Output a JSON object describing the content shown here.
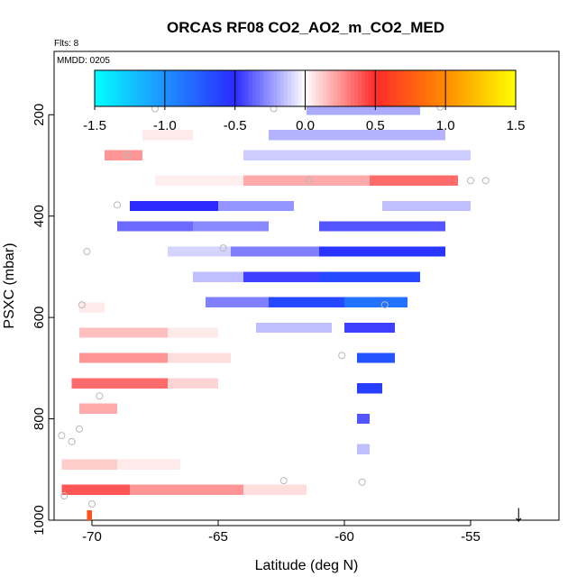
{
  "chart_data": {
    "type": "heatmap",
    "title": "ORCAS RF08 CO2_AO2_m_CO2_MED",
    "flights_note": "Flts: 8",
    "date_note": "MMDD: 0205",
    "xlabel": "Latitude (deg N)",
    "ylabel": "PSXC (mbar)",
    "xlim": [
      -71.5,
      -51.5
    ],
    "ylim": [
      1000,
      75
    ],
    "x_ticks": [
      -70,
      -65,
      -60,
      -55
    ],
    "x_tick_labels": [
      "-70",
      "-65",
      "-60",
      "-55"
    ],
    "y_ticks": [
      200,
      400,
      600,
      800,
      1000
    ],
    "y_tick_labels": [
      "200",
      "400",
      "600",
      "800",
      "1000"
    ],
    "colorbar": {
      "range": [
        -1.5,
        1.5
      ],
      "ticks": [
        -1.5,
        -1.0,
        -0.5,
        0.0,
        0.5,
        1.0,
        1.5
      ],
      "tick_labels": [
        "-1.5",
        "-1.0",
        "-0.5",
        "0.0",
        "0.5",
        "1.0",
        "1.5"
      ],
      "stops": [
        {
          "v": -1.5,
          "color": "#00FFFF"
        },
        {
          "v": -1.0,
          "color": "#1E90FF"
        },
        {
          "v": -0.5,
          "color": "#2A2AFF"
        },
        {
          "v": 0.0,
          "color": "#FFFFFF"
        },
        {
          "v": 0.5,
          "color": "#FF2A2A"
        },
        {
          "v": 1.0,
          "color": "#FF8C00"
        },
        {
          "v": 1.5,
          "color": "#FFFF00"
        }
      ]
    },
    "cell_size": {
      "dlat": 0.5,
      "dp": 20
    },
    "cells": [
      {
        "lat0": -68,
        "lat1": -66,
        "p": 240,
        "v": 0.05
      },
      {
        "lat0": -69.5,
        "lat1": -68,
        "p": 280,
        "v": 0.25
      },
      {
        "lat0": -61.5,
        "lat1": -57,
        "p": 190,
        "v": -0.2
      },
      {
        "lat0": -63,
        "lat1": -56,
        "p": 240,
        "v": -0.18
      },
      {
        "lat0": -64,
        "lat1": -55,
        "p": 280,
        "v": -0.12
      },
      {
        "lat0": -67.5,
        "lat1": -64,
        "p": 330,
        "v": 0.04
      },
      {
        "lat0": -64,
        "lat1": -59,
        "p": 330,
        "v": 0.2
      },
      {
        "lat0": -59,
        "lat1": -55.5,
        "p": 330,
        "v": 0.35
      },
      {
        "lat0": -68.5,
        "lat1": -65,
        "p": 380,
        "v": -0.5
      },
      {
        "lat0": -65,
        "lat1": -62,
        "p": 380,
        "v": -0.25
      },
      {
        "lat0": -58.5,
        "lat1": -55,
        "p": 380,
        "v": -0.15
      },
      {
        "lat0": -69,
        "lat1": -66,
        "p": 420,
        "v": -0.35
      },
      {
        "lat0": -66,
        "lat1": -63,
        "p": 420,
        "v": -0.28
      },
      {
        "lat0": -61,
        "lat1": -56,
        "p": 420,
        "v": -0.4
      },
      {
        "lat0": -67,
        "lat1": -64.5,
        "p": 470,
        "v": -0.1
      },
      {
        "lat0": -64.5,
        "lat1": -61,
        "p": 470,
        "v": -0.3
      },
      {
        "lat0": -61,
        "lat1": -56,
        "p": 470,
        "v": -0.55
      },
      {
        "lat0": -66,
        "lat1": -64,
        "p": 520,
        "v": -0.15
      },
      {
        "lat0": -64,
        "lat1": -61,
        "p": 520,
        "v": -0.45
      },
      {
        "lat0": -61,
        "lat1": -57,
        "p": 520,
        "v": -0.65
      },
      {
        "lat0": -65.5,
        "lat1": -63,
        "p": 570,
        "v": -0.3
      },
      {
        "lat0": -63,
        "lat1": -60,
        "p": 570,
        "v": -0.65
      },
      {
        "lat0": -60,
        "lat1": -57.5,
        "p": 570,
        "v": -0.85
      },
      {
        "lat0": -63.5,
        "lat1": -60.5,
        "p": 620,
        "v": -0.15
      },
      {
        "lat0": -60,
        "lat1": -58,
        "p": 620,
        "v": -0.45
      },
      {
        "lat0": -59.5,
        "lat1": -58,
        "p": 680,
        "v": -0.7
      },
      {
        "lat0": -59.5,
        "lat1": -58.5,
        "p": 740,
        "v": -0.6
      },
      {
        "lat0": -59.5,
        "lat1": -59,
        "p": 800,
        "v": -0.4
      },
      {
        "lat0": -59.5,
        "lat1": -59,
        "p": 860,
        "v": -0.15
      },
      {
        "lat0": -70.5,
        "lat1": -69.5,
        "p": 580,
        "v": 0.05
      },
      {
        "lat0": -70.5,
        "lat1": -67,
        "p": 630,
        "v": 0.15
      },
      {
        "lat0": -67,
        "lat1": -65,
        "p": 630,
        "v": 0.05
      },
      {
        "lat0": -70.5,
        "lat1": -67,
        "p": 680,
        "v": 0.25
      },
      {
        "lat0": -67,
        "lat1": -64.5,
        "p": 680,
        "v": 0.08
      },
      {
        "lat0": -70.8,
        "lat1": -67,
        "p": 730,
        "v": 0.35
      },
      {
        "lat0": -67,
        "lat1": -65,
        "p": 730,
        "v": 0.1
      },
      {
        "lat0": -70.5,
        "lat1": -69,
        "p": 780,
        "v": 0.2
      },
      {
        "lat0": -71.2,
        "lat1": -69,
        "p": 890,
        "v": 0.12
      },
      {
        "lat0": -69,
        "lat1": -66.5,
        "p": 890,
        "v": 0.05
      },
      {
        "lat0": -71.2,
        "lat1": -68.5,
        "p": 940,
        "v": 0.4
      },
      {
        "lat0": -68.5,
        "lat1": -64,
        "p": 940,
        "v": 0.25
      },
      {
        "lat0": -64,
        "lat1": -61.5,
        "p": 940,
        "v": 0.08
      },
      {
        "lat0": -70.2,
        "lat1": -70,
        "p": 990,
        "v": 0.7
      }
    ],
    "points": [
      [
        -67.5,
        188
      ],
      [
        -62.8,
        188
      ],
      [
        -56.2,
        185
      ],
      [
        -68.6,
        280
      ],
      [
        -61.4,
        330
      ],
      [
        -55,
        330
      ],
      [
        -54.4,
        330
      ],
      [
        -69,
        378
      ],
      [
        -64.8,
        463
      ],
      [
        -70.2,
        470
      ],
      [
        -70.4,
        575
      ],
      [
        -58.4,
        575
      ],
      [
        -60.1,
        675
      ],
      [
        -69.7,
        755
      ],
      [
        -70.5,
        820
      ],
      [
        -71.2,
        833
      ],
      [
        -70.8,
        845
      ],
      [
        -62.4,
        922
      ],
      [
        -59.3,
        925
      ],
      [
        -71.1,
        952
      ],
      [
        -70,
        968
      ]
    ],
    "arrow_marker": {
      "lat": -53.1,
      "label": "↓"
    }
  }
}
